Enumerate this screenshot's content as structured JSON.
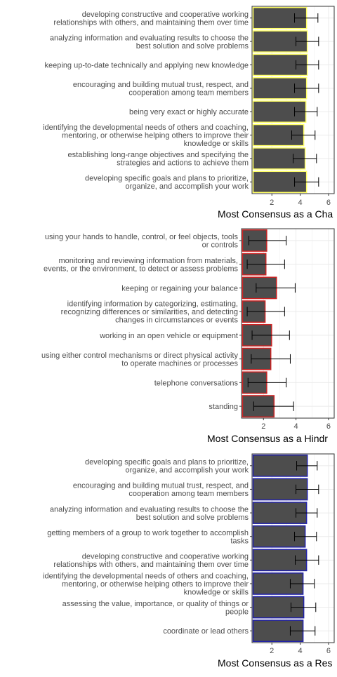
{
  "chart_data": [
    {
      "type": "bar",
      "orientation": "horizontal",
      "xlabel": "Most Consensus as a Cha",
      "xlim": [
        0.6,
        6.4
      ],
      "xticks": [
        "2",
        "4",
        "6"
      ],
      "grid": true,
      "bar_fill": "#4d4d4d",
      "bar_border": "#ffff66",
      "categories": [
        "developing constructive and cooperative working\nrelationships with others, and maintaining them over time",
        "analyzing information and evaluating results to choose the\nbest solution and solve problems",
        "keeping up-to-date technically and applying new knowledge",
        "encouraging and building mutual trust, respect, and\ncooperation among team members",
        "being very exact or highly accurate",
        "identifying the developmental needs of others and coaching,\nmentoring, or otherwise helping others to improve their\nknowledge or skills",
        "establishing long-range objectives and specifying the\nstrategies and actions to achieve them",
        "developing specific goals and plans to prioritize,\norganize, and accomplish your work"
      ],
      "values": [
        4.45,
        4.5,
        4.5,
        4.45,
        4.4,
        4.25,
        4.35,
        4.45
      ],
      "err_low": [
        3.6,
        3.7,
        3.7,
        3.6,
        3.6,
        3.4,
        3.5,
        3.6
      ],
      "err_high": [
        5.25,
        5.3,
        5.3,
        5.3,
        5.2,
        5.05,
        5.15,
        5.3
      ]
    },
    {
      "type": "bar",
      "orientation": "horizontal",
      "xlabel": "Most Consensus as a Hindr",
      "xlim": [
        0.65,
        6.35
      ],
      "xticks": [
        "2",
        "4",
        "6"
      ],
      "grid": true,
      "bar_fill": "#4d4d4d",
      "bar_border": "#cc2222",
      "categories": [
        "using your hands to handle, control, or feel objects, tools\nor controls",
        "monitoring and reviewing information from materials,\nevents, or the environment, to detect or assess problems",
        "keeping or regaining your balance",
        "identifying information by categorizing, estimating,\nrecognizing differences or similarities, and detecting\nchanges in circumstances or events",
        "working in an open vehicle or equipment",
        "using either control mechanisms or direct physical activity\nto operate machines or processes",
        "telephone conversations",
        "standing"
      ],
      "values": [
        2.2,
        2.15,
        2.8,
        2.1,
        2.5,
        2.45,
        2.2,
        2.65
      ],
      "err_low": [
        1.1,
        1.0,
        1.55,
        1.0,
        1.3,
        1.25,
        1.05,
        1.4
      ],
      "err_high": [
        3.4,
        3.3,
        3.95,
        3.3,
        3.6,
        3.65,
        3.4,
        3.85
      ]
    },
    {
      "type": "bar",
      "orientation": "horizontal",
      "xlabel": "Most Consensus as a Res",
      "xlim": [
        0.6,
        6.4
      ],
      "xticks": [
        "2",
        "4",
        "6"
      ],
      "grid": true,
      "bar_fill": "#4d4d4d",
      "bar_border": "#2222aa",
      "categories": [
        "developing specific goals and plans to prioritize,\norganize, and accomplish your work",
        "encouraging and building mutual trust, respect, and\ncooperation among team members",
        "analyzing information and evaluating results to choose the\nbest solution and solve problems",
        "getting members of a group to work together to accomplish\ntasks",
        "developing constructive and cooperative working\nrelationships with others, and maintaining them over time",
        "identifying the developmental needs of others and coaching,\nmentoring, or otherwise helping others to improve their\nknowledge or skills",
        "assessing the value, importance, or quality of things or\npeople",
        "coordinate or lead others"
      ],
      "values": [
        4.5,
        4.5,
        4.45,
        4.35,
        4.45,
        4.2,
        4.25,
        4.2
      ],
      "err_low": [
        3.75,
        3.7,
        3.7,
        3.6,
        3.65,
        3.3,
        3.35,
        3.3
      ],
      "err_high": [
        5.2,
        5.3,
        5.2,
        5.15,
        5.3,
        5.0,
        5.1,
        5.05
      ]
    }
  ]
}
